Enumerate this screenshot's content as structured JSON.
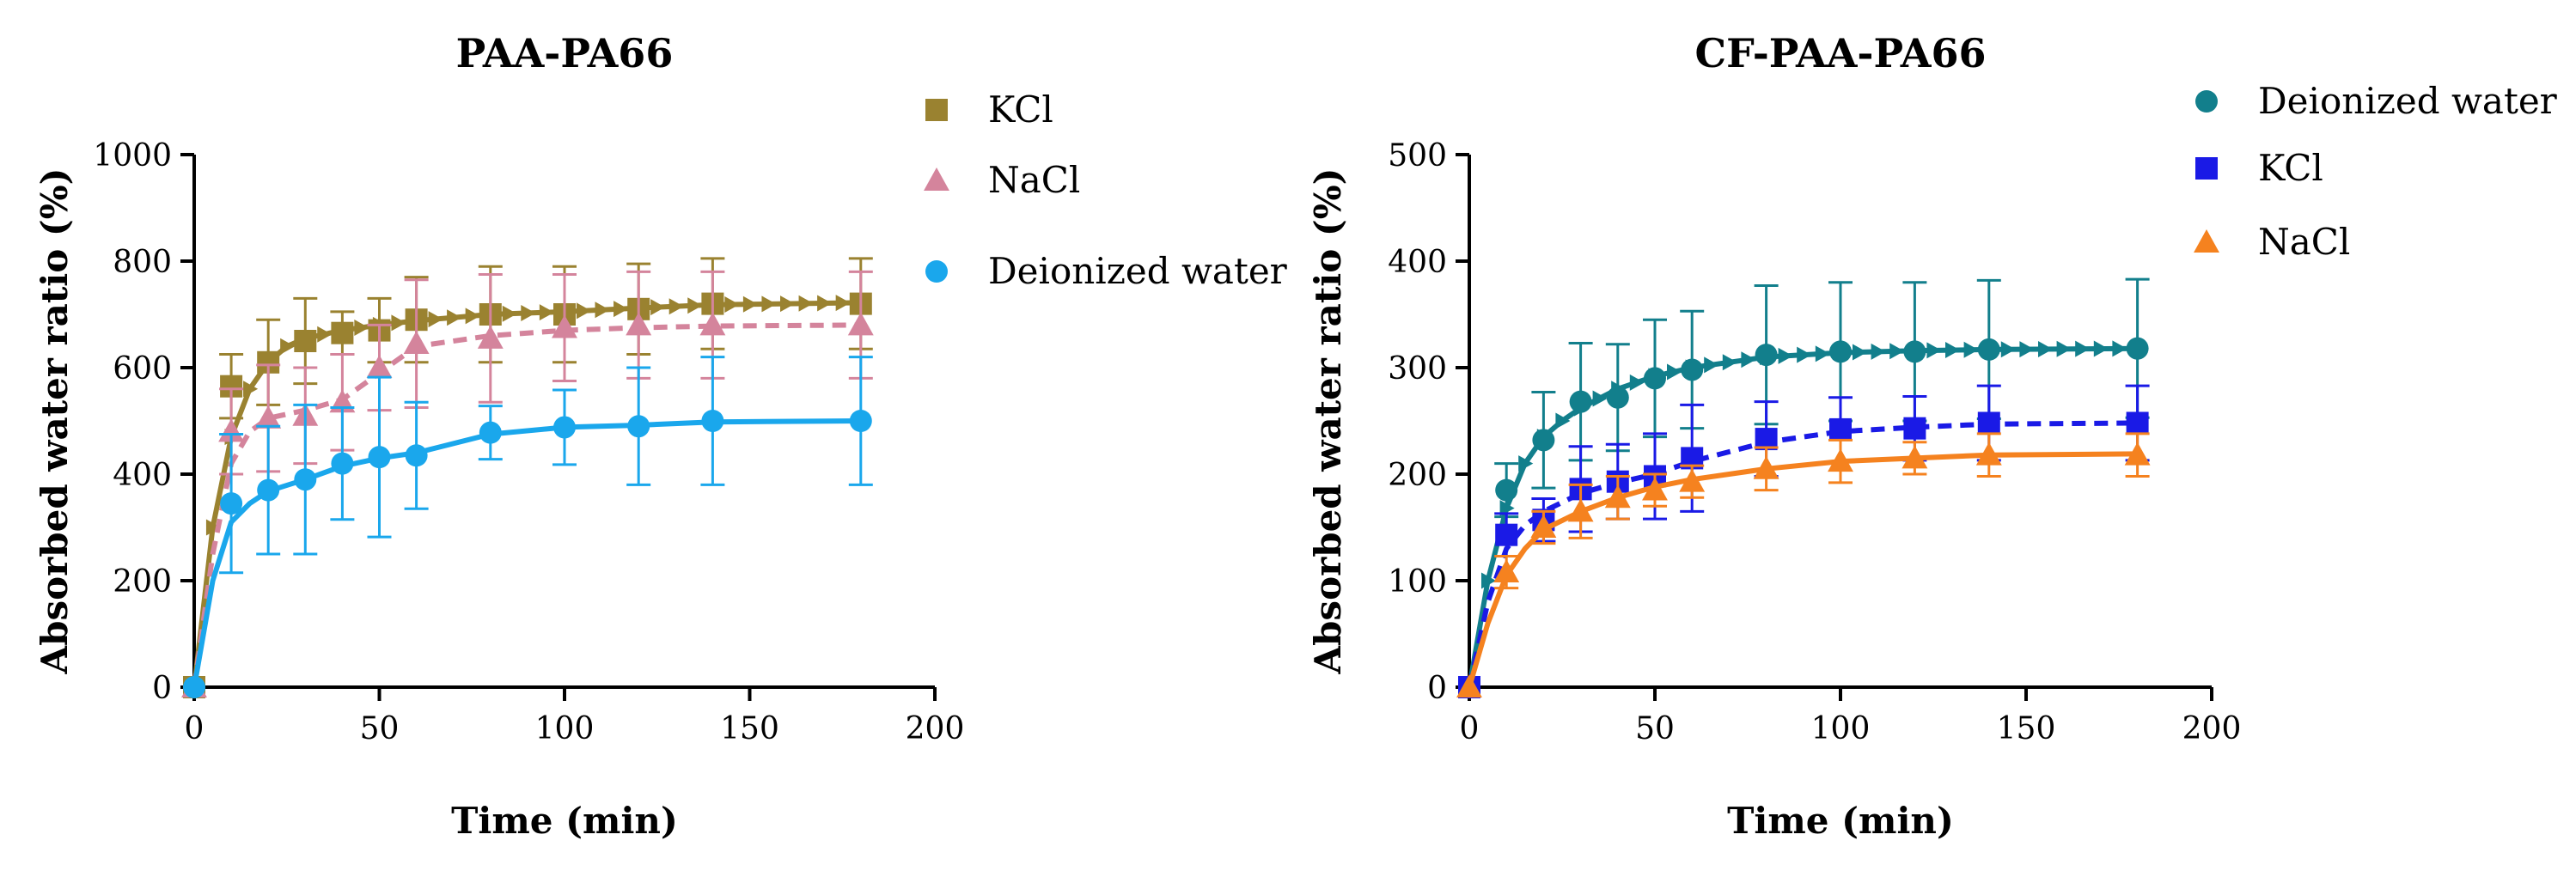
{
  "chart_data": [
    {
      "type": "line",
      "title": "PAA-PA66",
      "xlabel": "Time (min)",
      "ylabel": "Absorbed water ratio (%)",
      "xlim": [
        0,
        200
      ],
      "ylim": [
        0,
        1000
      ],
      "xticks": [
        0,
        50,
        100,
        150,
        200
      ],
      "yticks": [
        0,
        200,
        400,
        600,
        800,
        1000
      ],
      "grid": false,
      "legend_position": "top-right-outside",
      "series": [
        {
          "name": "KCl",
          "color": "#9a8230",
          "marker": "square",
          "dashed": false,
          "x": [
            0,
            10,
            20,
            30,
            40,
            50,
            60,
            80,
            100,
            120,
            140,
            180
          ],
          "y": [
            0,
            565,
            610,
            650,
            665,
            670,
            690,
            700,
            700,
            710,
            720,
            720
          ],
          "err": [
            0,
            60,
            80,
            80,
            40,
            60,
            80,
            90,
            90,
            85,
            85,
            85
          ],
          "fit_x": [
            0,
            5,
            10,
            15,
            20,
            25,
            30,
            40,
            50,
            60,
            80,
            100,
            120,
            140,
            180
          ],
          "fit_y": [
            0,
            300,
            470,
            560,
            610,
            640,
            655,
            670,
            680,
            688,
            700,
            705,
            712,
            718,
            722
          ]
        },
        {
          "name": "NaCl",
          "color": "#d4849c",
          "marker": "triangle",
          "dashed": true,
          "x": [
            0,
            10,
            20,
            30,
            40,
            50,
            60,
            80,
            100,
            120,
            140,
            180
          ],
          "y": [
            0,
            480,
            505,
            510,
            535,
            600,
            645,
            655,
            675,
            680,
            680,
            680
          ],
          "err": [
            0,
            80,
            100,
            90,
            90,
            80,
            120,
            120,
            100,
            100,
            100,
            100
          ],
          "fit_x": [
            0,
            5,
            10,
            15,
            20,
            30,
            40,
            50,
            60,
            80,
            100,
            120,
            140,
            180
          ],
          "fit_y": [
            0,
            250,
            420,
            480,
            505,
            520,
            540,
            590,
            640,
            660,
            670,
            675,
            678,
            680
          ]
        },
        {
          "name": "Deionized water",
          "color": "#1aa7ec",
          "marker": "circle",
          "dashed": false,
          "x": [
            0,
            10,
            20,
            30,
            40,
            50,
            60,
            80,
            100,
            120,
            140,
            180
          ],
          "y": [
            0,
            345,
            370,
            390,
            420,
            432,
            435,
            478,
            488,
            490,
            500,
            500
          ],
          "err": [
            0,
            130,
            120,
            140,
            105,
            150,
            100,
            50,
            70,
            110,
            120,
            120
          ],
          "fit_x": [
            0,
            5,
            10,
            15,
            20,
            30,
            40,
            50,
            60,
            80,
            100,
            120,
            140,
            180
          ],
          "fit_y": [
            0,
            200,
            310,
            345,
            368,
            390,
            415,
            430,
            440,
            475,
            488,
            492,
            498,
            500
          ]
        }
      ]
    },
    {
      "type": "line",
      "title": "CF-PAA-PA66",
      "xlabel": "Time (min)",
      "ylabel": "Absorbed water ratio (%)",
      "xlim": [
        0,
        200
      ],
      "ylim": [
        0,
        500
      ],
      "xticks": [
        0,
        50,
        100,
        150,
        200
      ],
      "yticks": [
        0,
        100,
        200,
        300,
        400,
        500
      ],
      "grid": false,
      "legend_position": "top-right-outside",
      "series": [
        {
          "name": "Deionized water",
          "color": "#127f8c",
          "marker": "circle",
          "dashed": false,
          "x": [
            0,
            10,
            20,
            30,
            40,
            50,
            60,
            80,
            100,
            120,
            140,
            180
          ],
          "y": [
            0,
            185,
            232,
            268,
            272,
            290,
            298,
            312,
            315,
            315,
            317,
            318
          ],
          "err": [
            0,
            25,
            45,
            55,
            50,
            55,
            55,
            65,
            65,
            65,
            65,
            65
          ],
          "fit_x": [
            0,
            5,
            10,
            15,
            20,
            25,
            30,
            40,
            50,
            60,
            80,
            100,
            120,
            140,
            180
          ],
          "fit_y": [
            0,
            100,
            168,
            210,
            235,
            250,
            262,
            280,
            292,
            300,
            310,
            314,
            316,
            317,
            318
          ]
        },
        {
          "name": "KCl",
          "color": "#1a1ae6",
          "marker": "square",
          "dashed": true,
          "x": [
            0,
            10,
            20,
            30,
            40,
            50,
            60,
            80,
            100,
            120,
            140,
            180
          ],
          "y": [
            0,
            143,
            157,
            186,
            193,
            198,
            215,
            233,
            242,
            243,
            248,
            248
          ],
          "err": [
            0,
            20,
            20,
            40,
            35,
            40,
            50,
            35,
            30,
            30,
            35,
            35
          ],
          "fit_x": [
            0,
            5,
            10,
            15,
            20,
            30,
            40,
            50,
            60,
            80,
            100,
            120,
            140,
            180
          ],
          "fit_y": [
            0,
            80,
            130,
            152,
            165,
            182,
            192,
            200,
            212,
            230,
            240,
            244,
            247,
            248
          ]
        },
        {
          "name": "NaCl",
          "color": "#f5821f",
          "marker": "triangle",
          "dashed": false,
          "x": [
            0,
            10,
            20,
            30,
            40,
            50,
            60,
            80,
            100,
            120,
            140,
            180
          ],
          "y": [
            0,
            108,
            150,
            165,
            178,
            185,
            193,
            205,
            212,
            215,
            218,
            218
          ],
          "err": [
            0,
            15,
            15,
            25,
            20,
            15,
            15,
            20,
            20,
            15,
            20,
            20
          ],
          "fit_x": [
            0,
            5,
            10,
            15,
            20,
            30,
            40,
            50,
            60,
            80,
            100,
            120,
            140,
            180
          ],
          "fit_y": [
            0,
            60,
            105,
            130,
            148,
            165,
            178,
            188,
            195,
            205,
            212,
            215,
            218,
            219
          ]
        }
      ]
    }
  ]
}
